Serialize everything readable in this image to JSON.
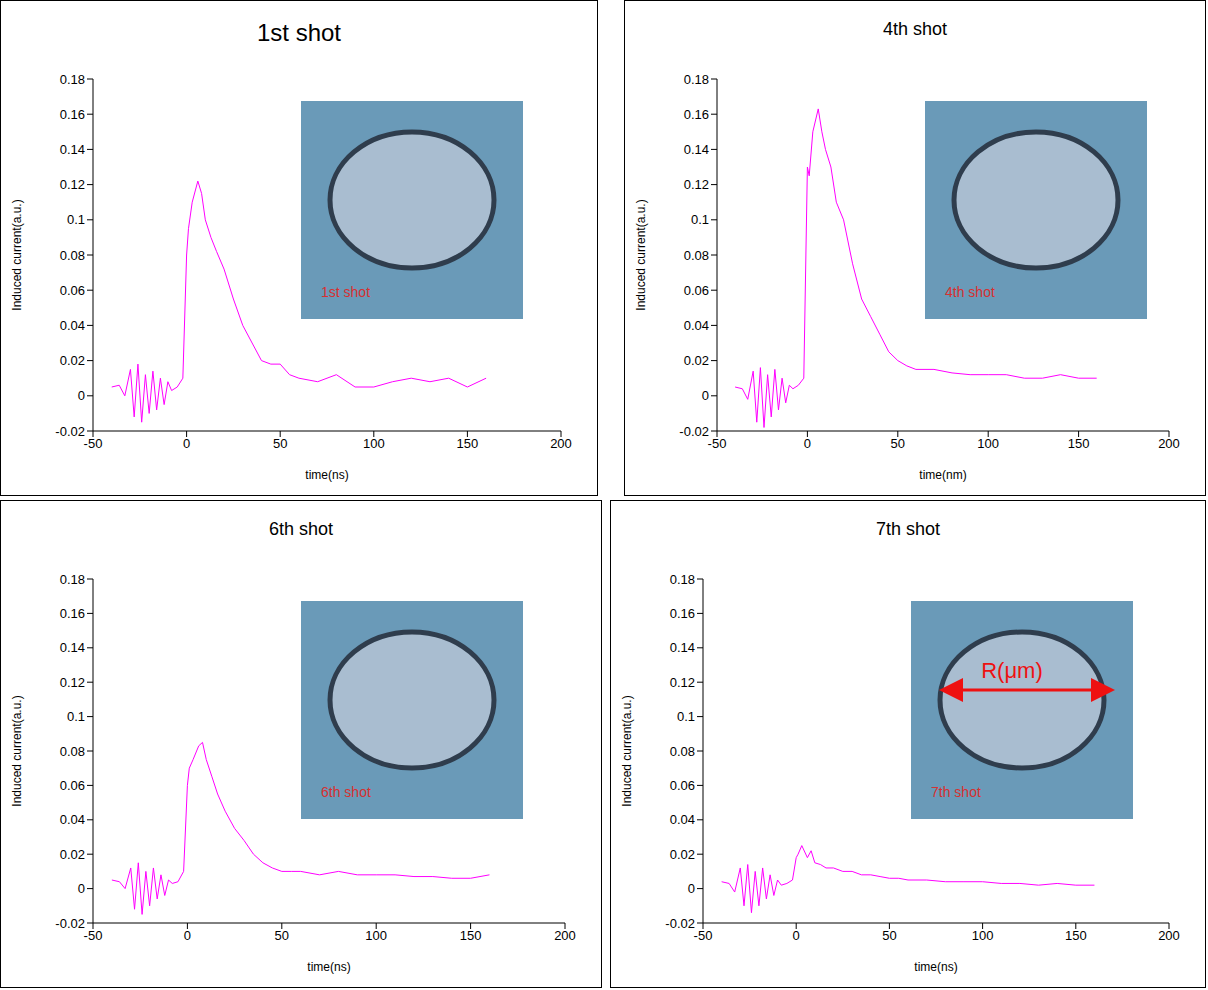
{
  "chart_data": [
    {
      "type": "line",
      "title": "1st shot",
      "x_label": "time(ns)",
      "y_label": "Induced current(a.u.)",
      "inset_label": "1st shot",
      "x": [
        -40,
        -36,
        -33,
        -30,
        -28,
        -26,
        -24,
        -22,
        -20,
        -18,
        -16,
        -14,
        -12,
        -10,
        -8,
        -5,
        -2,
        0,
        1,
        3,
        6,
        8,
        10,
        13,
        16,
        20,
        25,
        30,
        35,
        40,
        45,
        50,
        55,
        60,
        70,
        80,
        90,
        100,
        110,
        120,
        130,
        140,
        150,
        160
      ],
      "series": [
        {
          "color": "#ff00ff",
          "values": [
            0.005,
            0.006,
            0.0,
            0.015,
            -0.012,
            0.018,
            -0.015,
            0.012,
            -0.01,
            0.014,
            -0.008,
            0.01,
            -0.005,
            0.008,
            0.003,
            0.005,
            0.01,
            0.08,
            0.095,
            0.11,
            0.122,
            0.115,
            0.1,
            0.09,
            0.082,
            0.072,
            0.055,
            0.04,
            0.03,
            0.02,
            0.018,
            0.018,
            0.012,
            0.01,
            0.008,
            0.012,
            0.005,
            0.005,
            0.008,
            0.01,
            0.008,
            0.01,
            0.005,
            0.01
          ]
        }
      ],
      "xlim": [
        -50,
        200
      ],
      "xticks": [
        -50,
        0,
        50,
        100,
        150,
        200
      ],
      "ylim": [
        -0.02,
        0.18
      ],
      "yticks": [
        -0.02,
        0,
        0.02,
        0.04,
        0.06,
        0.08,
        0.1,
        0.12,
        0.14,
        0.16,
        0.18
      ]
    },
    {
      "type": "line",
      "title": "4th shot",
      "x_label": "time(nm)",
      "y_label": "Induced current(a.u.)",
      "inset_label": "4th shot",
      "x": [
        -40,
        -36,
        -33,
        -30,
        -28,
        -26,
        -24,
        -22,
        -20,
        -18,
        -16,
        -14,
        -12,
        -10,
        -8,
        -5,
        -2,
        0,
        1,
        3,
        6,
        8,
        10,
        13,
        16,
        20,
        25,
        30,
        35,
        40,
        45,
        50,
        55,
        60,
        70,
        80,
        90,
        100,
        110,
        120,
        130,
        140,
        150,
        160
      ],
      "series": [
        {
          "color": "#ff00ff",
          "values": [
            0.005,
            0.004,
            -0.002,
            0.014,
            -0.015,
            0.016,
            -0.018,
            0.012,
            -0.012,
            0.015,
            -0.008,
            0.01,
            -0.004,
            0.006,
            0.004,
            0.006,
            0.01,
            0.13,
            0.125,
            0.15,
            0.163,
            0.15,
            0.14,
            0.13,
            0.11,
            0.1,
            0.075,
            0.055,
            0.045,
            0.035,
            0.025,
            0.02,
            0.017,
            0.015,
            0.015,
            0.013,
            0.012,
            0.012,
            0.012,
            0.01,
            0.01,
            0.012,
            0.01,
            0.01
          ]
        }
      ],
      "xlim": [
        -50,
        200
      ],
      "xticks": [
        -50,
        0,
        50,
        100,
        150,
        200
      ],
      "ylim": [
        -0.02,
        0.18
      ],
      "yticks": [
        -0.02,
        0,
        0.02,
        0.04,
        0.06,
        0.08,
        0.1,
        0.12,
        0.14,
        0.16,
        0.18
      ]
    },
    {
      "type": "line",
      "title": "6th shot",
      "x_label": "time(ns)",
      "y_label": "Induced current(a.u.)",
      "inset_label": "6th shot",
      "x": [
        -40,
        -36,
        -33,
        -30,
        -28,
        -26,
        -24,
        -22,
        -20,
        -18,
        -16,
        -14,
        -12,
        -10,
        -8,
        -5,
        -2,
        0,
        1,
        3,
        6,
        8,
        10,
        13,
        16,
        20,
        25,
        30,
        35,
        40,
        45,
        50,
        55,
        60,
        70,
        80,
        90,
        100,
        110,
        120,
        130,
        140,
        150,
        160
      ],
      "series": [
        {
          "color": "#ff00ff",
          "values": [
            0.005,
            0.004,
            0.0,
            0.012,
            -0.012,
            0.015,
            -0.015,
            0.01,
            -0.01,
            0.012,
            -0.006,
            0.008,
            -0.004,
            0.005,
            0.003,
            0.004,
            0.01,
            0.06,
            0.07,
            0.075,
            0.083,
            0.085,
            0.075,
            0.065,
            0.055,
            0.045,
            0.035,
            0.028,
            0.02,
            0.015,
            0.012,
            0.01,
            0.01,
            0.01,
            0.008,
            0.01,
            0.008,
            0.008,
            0.008,
            0.007,
            0.007,
            0.006,
            0.006,
            0.008
          ]
        }
      ],
      "xlim": [
        -50,
        200
      ],
      "xticks": [
        -50,
        0,
        50,
        100,
        150,
        200
      ],
      "ylim": [
        -0.02,
        0.18
      ],
      "yticks": [
        -0.02,
        0,
        0.02,
        0.04,
        0.06,
        0.08,
        0.1,
        0.12,
        0.14,
        0.16,
        0.18
      ]
    },
    {
      "type": "line",
      "title": "7th shot",
      "x_label": "time(ns)",
      "y_label": "Induced current(a.u.)",
      "inset_label": "7th shot",
      "annotation": "R(μm)",
      "x": [
        -40,
        -36,
        -33,
        -30,
        -28,
        -26,
        -24,
        -22,
        -20,
        -18,
        -16,
        -14,
        -12,
        -10,
        -8,
        -5,
        -2,
        0,
        1,
        3,
        6,
        8,
        10,
        13,
        16,
        20,
        25,
        30,
        35,
        40,
        45,
        50,
        55,
        60,
        70,
        80,
        90,
        100,
        110,
        120,
        130,
        140,
        150,
        160
      ],
      "series": [
        {
          "color": "#ff00ff",
          "values": [
            0.004,
            0.003,
            -0.002,
            0.012,
            -0.01,
            0.014,
            -0.014,
            0.01,
            -0.01,
            0.012,
            -0.006,
            0.008,
            -0.004,
            0.005,
            0.002,
            0.003,
            0.005,
            0.018,
            0.02,
            0.025,
            0.018,
            0.022,
            0.015,
            0.014,
            0.012,
            0.012,
            0.01,
            0.01,
            0.008,
            0.008,
            0.007,
            0.006,
            0.006,
            0.005,
            0.005,
            0.004,
            0.004,
            0.004,
            0.003,
            0.003,
            0.002,
            0.003,
            0.002,
            0.002
          ]
        }
      ],
      "xlim": [
        -50,
        200
      ],
      "xticks": [
        -50,
        0,
        50,
        100,
        150,
        200
      ],
      "ylim": [
        -0.02,
        0.18
      ],
      "yticks": [
        -0.02,
        0,
        0.02,
        0.04,
        0.06,
        0.08,
        0.1,
        0.12,
        0.14,
        0.16,
        0.18
      ]
    }
  ]
}
